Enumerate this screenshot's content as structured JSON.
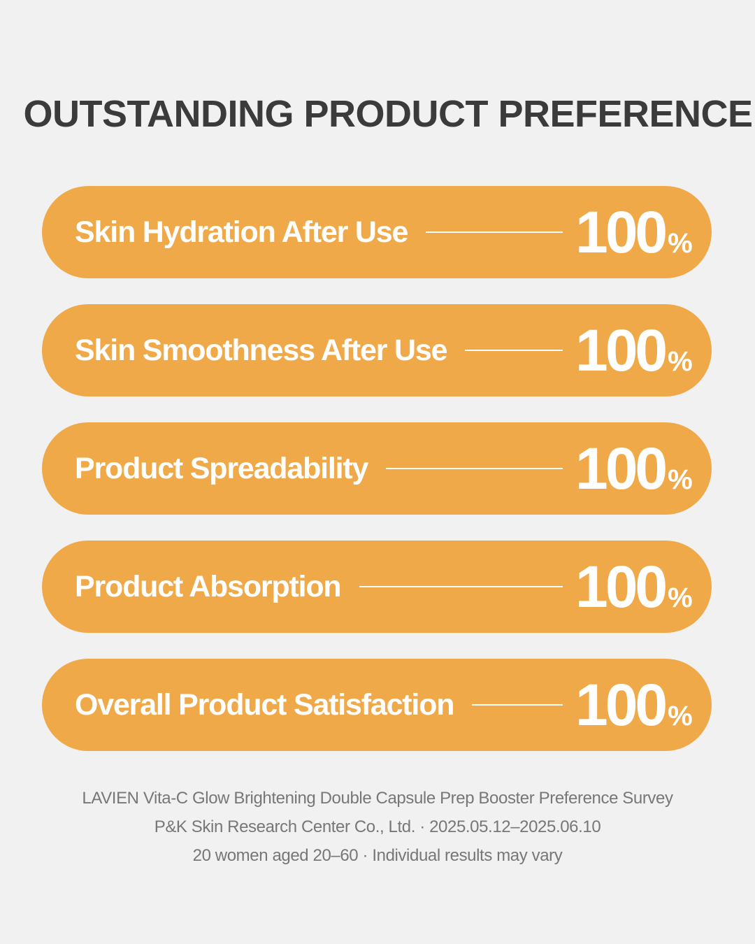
{
  "title": "OUTSTANDING PRODUCT PREFERENCE",
  "items": [
    {
      "label": "Skin Hydration After Use",
      "value": 100,
      "unit": "%"
    },
    {
      "label": "Skin Smoothness After Use",
      "value": 100,
      "unit": "%"
    },
    {
      "label": "Product Spreadability",
      "value": 100,
      "unit": "%"
    },
    {
      "label": "Product Absorption",
      "value": 100,
      "unit": "%"
    },
    {
      "label": "Overall Product Satisfaction",
      "value": 100,
      "unit": "%"
    }
  ],
  "footer": [
    "LAVIEN Vita-C Glow Brightening Double Capsule Prep Booster Preference Survey",
    "P&K Skin Research Center Co., Ltd. · 2025.05.12–2025.06.10",
    "20 women aged 20–60 · Individual results may vary"
  ]
}
